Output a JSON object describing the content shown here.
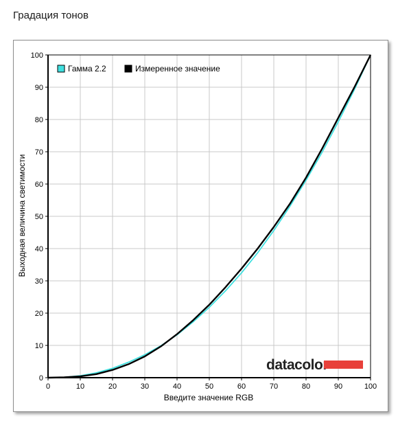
{
  "page": {
    "title": "Градация тонов"
  },
  "brand": {
    "name": "datacolor",
    "accent_color": "#e8403a"
  },
  "chart_data": {
    "type": "line",
    "xlabel": "Введите значение RGB",
    "ylabel": "Выходная величина светимости",
    "xlim": [
      0,
      100
    ],
    "ylim": [
      0,
      100
    ],
    "x_ticks": [
      0,
      10,
      20,
      30,
      40,
      50,
      60,
      70,
      80,
      90,
      100
    ],
    "y_ticks": [
      0,
      10,
      20,
      30,
      40,
      50,
      60,
      70,
      80,
      90,
      100
    ],
    "grid": true,
    "legend_position": "top-left",
    "series": [
      {
        "name": "Гамма 2.2",
        "color": "#40e0e0",
        "x": [
          0,
          5,
          10,
          15,
          20,
          25,
          30,
          35,
          40,
          45,
          50,
          55,
          60,
          65,
          70,
          75,
          80,
          85,
          90,
          95,
          100
        ],
        "y": [
          0,
          0.1,
          0.6,
          1.5,
          2.9,
          4.8,
          7.1,
          9.9,
          13.3,
          17.3,
          21.8,
          26.9,
          32.5,
          38.7,
          45.6,
          53.1,
          61.2,
          69.9,
          79.3,
          89.3,
          100
        ]
      },
      {
        "name": "Измеренное значение",
        "color": "#000000",
        "x": [
          0,
          5,
          10,
          15,
          20,
          25,
          30,
          35,
          40,
          45,
          50,
          55,
          60,
          65,
          70,
          75,
          80,
          85,
          90,
          95,
          100
        ],
        "y": [
          0,
          0.1,
          0.4,
          1.1,
          2.4,
          4.2,
          6.6,
          9.7,
          13.5,
          17.8,
          22.6,
          28.0,
          33.8,
          40.0,
          46.7,
          53.9,
          62.0,
          71.0,
          80.5,
          90.0,
          100
        ]
      }
    ]
  }
}
